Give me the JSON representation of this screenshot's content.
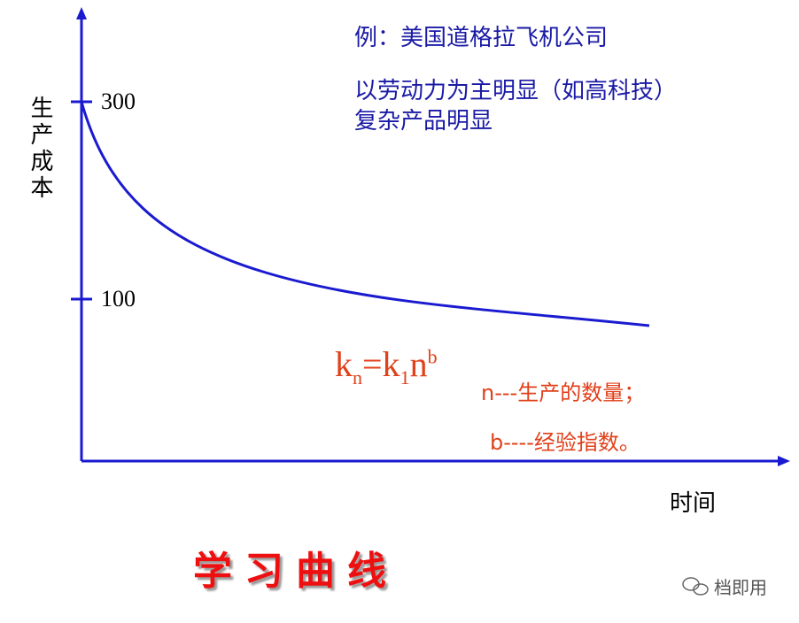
{
  "axes": {
    "y_label": "生产成本",
    "x_label": "时间",
    "ticks": [
      "300",
      "100"
    ]
  },
  "annotations": [
    "例：美国道格拉飞机公司",
    "以劳动力为主明显（如高科技）",
    "复杂产品明显"
  ],
  "formula": {
    "k": "k",
    "sub_n": "n",
    "eq_k": "=k",
    "sub_1": "1",
    "n": "n",
    "sup_b": "b"
  },
  "notes": [
    "n---生产的数量；",
    "b----经验指数。"
  ],
  "title": "学习曲线",
  "watermark": "档即用"
}
